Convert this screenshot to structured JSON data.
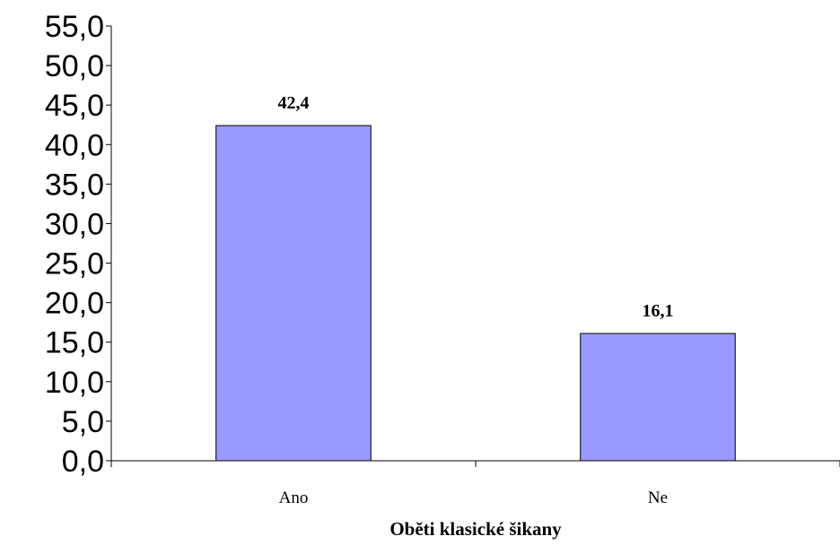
{
  "chart_data": {
    "type": "bar",
    "categories": [
      "Ano",
      "Ne"
    ],
    "values": [
      42.4,
      16.1
    ],
    "data_labels": [
      "42,4",
      "16,1"
    ],
    "xlabel": "Oběti klasické šikany",
    "ylabel": "",
    "ylim": [
      0,
      55
    ],
    "y_ticks": [
      0,
      5,
      10,
      15,
      20,
      25,
      30,
      35,
      40,
      45,
      50,
      55
    ],
    "y_tick_labels": [
      "0,0",
      "5,0",
      "10,0",
      "15,0",
      "20,0",
      "25,0",
      "30,0",
      "35,0",
      "40,0",
      "45,0",
      "50,0",
      "55,0"
    ],
    "grid": false,
    "legend": "none",
    "bar_color": "#9999ff",
    "bar_edge_color": "#000000"
  }
}
